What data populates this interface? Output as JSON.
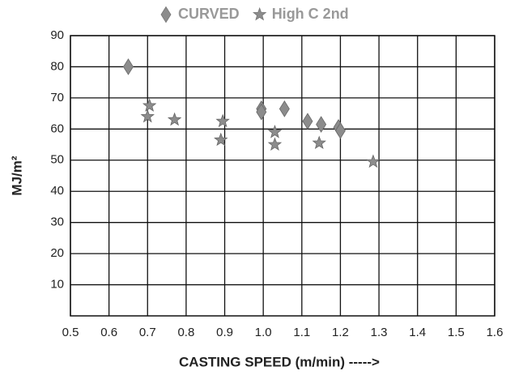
{
  "chart_data": {
    "type": "scatter",
    "xlabel": "CASTING SPEED (m/min) ----->",
    "ylabel": "MJ/m²",
    "xlim": [
      0.5,
      1.6
    ],
    "xticks": [
      0.5,
      0.6,
      0.7,
      0.8,
      0.9,
      {
        "value": 1,
        "label": "1.0"
      },
      1.1,
      1.2,
      1.3,
      1.4,
      1.5,
      1.6
    ],
    "ylim": [
      0,
      90
    ],
    "yticks": [
      10,
      20,
      30,
      40,
      50,
      60,
      70,
      80,
      90
    ],
    "grid": true,
    "legend": "top",
    "series": [
      {
        "name": "CURVED",
        "color": "#8c8c8c",
        "marker": "diamond",
        "x": [
          0.65,
          0.995,
          0.995,
          1.055,
          1.115,
          1.15,
          1.195,
          1.2
        ],
        "values": [
          80,
          66.5,
          65.5,
          66.5,
          62.5,
          61.5,
          60.5,
          59.5
        ]
      },
      {
        "name": "High C 2nd",
        "color": "#8c8c8c",
        "marker": "star",
        "x": [
          0.705,
          0.7,
          0.77,
          0.895,
          0.89,
          1.03,
          1.03,
          1.145,
          1.285
        ],
        "values": [
          67.5,
          64,
          63,
          62.5,
          56.5,
          59,
          55,
          55.5,
          49.5
        ]
      }
    ]
  }
}
